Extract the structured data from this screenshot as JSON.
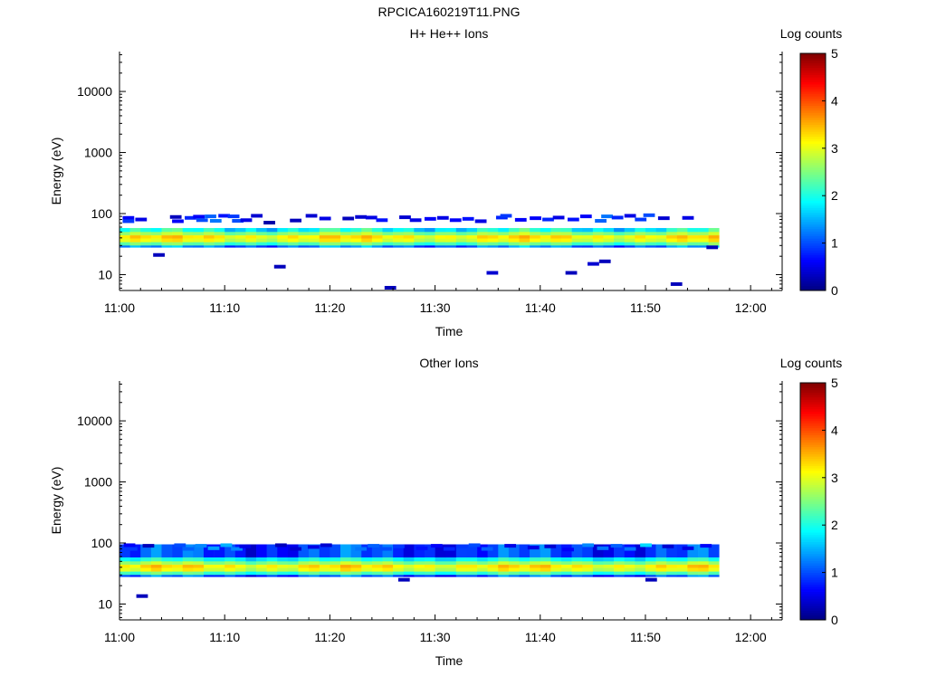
{
  "figure_title": "RPCICA160219T11.PNG",
  "colors": {
    "colormap": [
      "#00007f",
      "#0000ff",
      "#007fff",
      "#00ffff",
      "#7fff7f",
      "#ffff00",
      "#ff7f00",
      "#ff0000",
      "#7f0000"
    ],
    "axes": "#000000",
    "background": "#ffffff"
  },
  "chart_data": [
    {
      "type": "heatmap",
      "title": "H+ He++ Ions",
      "xlabel": "Time",
      "ylabel": "Energy (eV)",
      "x_ticks": [
        "11:00",
        "11:10",
        "11:20",
        "11:30",
        "11:40",
        "11:50",
        "12:00"
      ],
      "x_range_minutes": [
        0,
        63
      ],
      "y_scale": "log",
      "y_range": [
        5.5,
        45000
      ],
      "y_ticks": [
        "10",
        "100",
        "1000",
        "10000"
      ],
      "colorbar": {
        "label": "Log counts",
        "range": [
          0,
          5
        ],
        "ticks": [
          "0",
          "1",
          "2",
          "3",
          "4",
          "5"
        ]
      },
      "data_time_range_minutes": [
        0,
        56.5
      ],
      "core_band": [
        {
          "low_eV": 50,
          "high_eV": 58,
          "log_counts": 1.9
        },
        {
          "low_eV": 44,
          "high_eV": 50,
          "log_counts": 2.6
        },
        {
          "low_eV": 39,
          "high_eV": 44,
          "log_counts": 3.2
        },
        {
          "low_eV": 34,
          "high_eV": 39,
          "log_counts": 3.0
        },
        {
          "low_eV": 30,
          "high_eV": 34,
          "log_counts": 2.3
        },
        {
          "low_eV": 28,
          "high_eV": 30,
          "log_counts": 1.2
        }
      ],
      "sparse_points": [
        [
          0.3,
          85,
          0.6
        ],
        [
          0.3,
          75,
          0.9
        ],
        [
          1.5,
          80,
          0.5
        ],
        [
          3.2,
          21,
          0.3
        ],
        [
          4.8,
          88,
          0.3
        ],
        [
          5,
          75,
          0.6
        ],
        [
          6.2,
          85,
          0.8
        ],
        [
          7,
          89,
          0.6
        ],
        [
          7.3,
          78,
          1.0
        ],
        [
          8.1,
          90,
          1.1
        ],
        [
          8.6,
          76,
          1.2
        ],
        [
          9.4,
          92,
          0.7
        ],
        [
          10.3,
          90,
          0.9
        ],
        [
          10.7,
          76,
          1.0
        ],
        [
          11.5,
          78,
          0.5
        ],
        [
          12.5,
          92,
          0.4
        ],
        [
          13.7,
          71,
          0.2
        ],
        [
          14.7,
          13.5,
          0.3
        ],
        [
          16.2,
          77,
          0.3
        ],
        [
          17.7,
          92,
          0.4
        ],
        [
          19,
          83,
          0.5
        ],
        [
          21.2,
          83,
          0.3
        ],
        [
          22.4,
          88,
          0.4
        ],
        [
          23.4,
          86,
          0.5
        ],
        [
          24.4,
          78,
          0.7
        ],
        [
          25.2,
          6.1,
          0.3
        ],
        [
          26.6,
          87,
          0.4
        ],
        [
          27.6,
          78,
          0.5
        ],
        [
          29,
          82,
          0.6
        ],
        [
          30.2,
          85,
          0.5
        ],
        [
          31.4,
          78,
          0.6
        ],
        [
          32.6,
          82,
          0.7
        ],
        [
          33.8,
          75,
          0.5
        ],
        [
          34.9,
          10.7,
          0.4
        ],
        [
          35.8,
          86,
          0.8
        ],
        [
          36.2,
          92,
          0.9
        ],
        [
          37.6,
          79,
          0.6
        ],
        [
          39,
          84,
          0.6
        ],
        [
          40.2,
          80,
          0.8
        ],
        [
          41.2,
          86,
          0.5
        ],
        [
          42.4,
          10.7,
          0.3
        ],
        [
          42.6,
          80,
          0.7
        ],
        [
          43.8,
          90,
          0.6
        ],
        [
          44.5,
          15,
          0.4
        ],
        [
          45.2,
          76,
          1.1
        ],
        [
          45.6,
          16.5,
          0.3
        ],
        [
          45.8,
          90,
          1.2
        ],
        [
          46.8,
          86,
          0.8
        ],
        [
          48,
          92,
          0.5
        ],
        [
          49,
          80,
          0.9
        ],
        [
          49.8,
          94,
          1.0
        ],
        [
          51.2,
          84,
          0.4
        ],
        [
          52.4,
          7,
          0.3
        ],
        [
          53.5,
          85,
          0.5
        ],
        [
          55.8,
          28,
          0.3
        ]
      ]
    },
    {
      "type": "heatmap",
      "title": "Other Ions",
      "xlabel": "Time",
      "ylabel": "Energy (eV)",
      "x_ticks": [
        "11:00",
        "11:10",
        "11:20",
        "11:30",
        "11:40",
        "11:50",
        "12:00"
      ],
      "x_range_minutes": [
        0,
        63
      ],
      "y_scale": "log",
      "y_range": [
        5.5,
        45000
      ],
      "y_ticks": [
        "10",
        "100",
        "1000",
        "10000"
      ],
      "colorbar": {
        "label": "Log counts",
        "range": [
          0,
          5
        ],
        "ticks": [
          "0",
          "1",
          "2",
          "3",
          "4",
          "5"
        ]
      },
      "data_time_range_minutes": [
        0,
        56.5
      ],
      "core_band": [
        {
          "low_eV": 58,
          "high_eV": 95,
          "log_counts": 0.9
        },
        {
          "low_eV": 50,
          "high_eV": 58,
          "log_counts": 1.9
        },
        {
          "low_eV": 44,
          "high_eV": 50,
          "log_counts": 2.6
        },
        {
          "low_eV": 39,
          "high_eV": 44,
          "log_counts": 3.2
        },
        {
          "low_eV": 34,
          "high_eV": 39,
          "log_counts": 3.0
        },
        {
          "low_eV": 30,
          "high_eV": 34,
          "log_counts": 2.2
        },
        {
          "low_eV": 28,
          "high_eV": 30,
          "log_counts": 1.0
        }
      ],
      "sparse_points": [
        [
          0.4,
          92,
          0.6
        ],
        [
          0.6,
          80,
          0.9
        ],
        [
          1.6,
          13.5,
          0.3
        ],
        [
          2.2,
          90,
          0.3
        ],
        [
          5.2,
          92,
          1.0
        ],
        [
          6,
          80,
          1.1
        ],
        [
          7.2,
          90,
          1.3
        ],
        [
          8.4,
          82,
          1.4
        ],
        [
          9.6,
          92,
          1.5
        ],
        [
          10.6,
          80,
          1.3
        ],
        [
          11.4,
          88,
          0.5
        ],
        [
          14.8,
          92,
          0.3
        ],
        [
          16.2,
          80,
          0.4
        ],
        [
          17.9,
          86,
          0.5
        ],
        [
          19.1,
          92,
          0.4
        ],
        [
          22.4,
          80,
          1.2
        ],
        [
          23.6,
          90,
          1.1
        ],
        [
          24.8,
          80,
          1.0
        ],
        [
          26,
          88,
          0.9
        ],
        [
          26.5,
          25,
          0.3
        ],
        [
          28.2,
          82,
          0.7
        ],
        [
          29.6,
          90,
          0.6
        ],
        [
          30.8,
          80,
          0.8
        ],
        [
          32,
          88,
          0.9
        ],
        [
          33.2,
          92,
          1.0
        ],
        [
          34.4,
          80,
          1.1
        ],
        [
          36.6,
          90,
          0.5
        ],
        [
          38.8,
          84,
          0.5
        ],
        [
          40.4,
          88,
          0.4
        ],
        [
          42.1,
          78,
          0.6
        ],
        [
          44,
          92,
          1.3
        ],
        [
          45.4,
          82,
          1.2
        ],
        [
          46.7,
          90,
          1.1
        ],
        [
          48,
          80,
          1.2
        ],
        [
          49.5,
          92,
          1.7
        ],
        [
          51.6,
          88,
          0.4
        ],
        [
          53.5,
          82,
          0.5
        ],
        [
          55.2,
          90,
          0.6
        ],
        [
          50,
          25,
          0.3
        ]
      ]
    }
  ]
}
